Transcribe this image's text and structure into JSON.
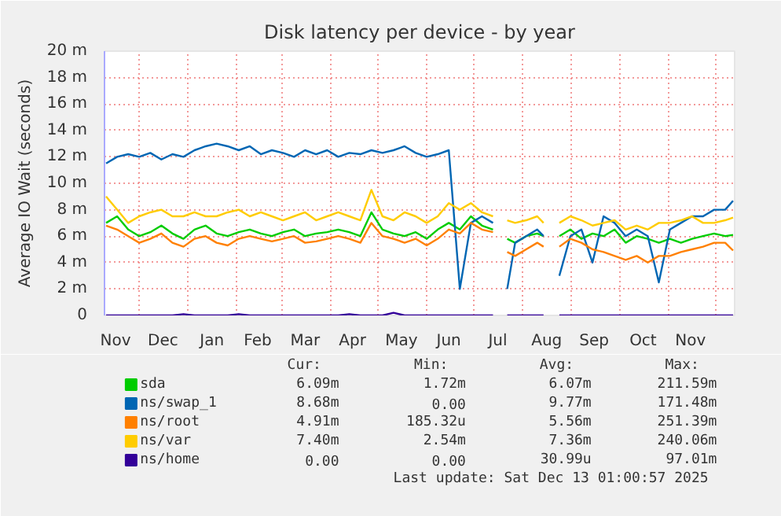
{
  "chart_data": {
    "type": "line",
    "title": "Disk latency per device - by year",
    "ylabel": "Average IO Wait (seconds)",
    "x": [
      "2024-11-10",
      "2024-11-17",
      "2024-11-24",
      "2024-12-01",
      "2024-12-08",
      "2024-12-15",
      "2024-12-22",
      "2024-12-29",
      "2025-01-05",
      "2025-01-12",
      "2025-01-19",
      "2025-01-26",
      "2025-02-02",
      "2025-02-09",
      "2025-02-16",
      "2025-02-23",
      "2025-03-02",
      "2025-03-09",
      "2025-03-16",
      "2025-03-23",
      "2025-03-30",
      "2025-04-06",
      "2025-04-13",
      "2025-04-20",
      "2025-04-27",
      "2025-05-04",
      "2025-05-11",
      "2025-05-18",
      "2025-05-25",
      "2025-06-01",
      "2025-06-08",
      "2025-06-15",
      "2025-06-22",
      "2025-06-29",
      "2025-07-06",
      "2025-07-13",
      "2025-07-20",
      "2025-07-22",
      "2025-07-27",
      "2025-08-03",
      "2025-08-10",
      "2025-08-14",
      "2025-08-17",
      "2025-08-24",
      "2025-08-31",
      "2025-09-07",
      "2025-09-14",
      "2025-09-21",
      "2025-09-28",
      "2025-10-05",
      "2025-10-12",
      "2025-10-19",
      "2025-10-26",
      "2025-11-02",
      "2025-11-09",
      "2025-11-16",
      "2025-11-23",
      "2025-11-30",
      "2025-12-07",
      "2025-12-12"
    ],
    "series": [
      {
        "name": "sda",
        "color": "#00cc00",
        "values": [
          7.0,
          7.5,
          6.5,
          6.0,
          6.3,
          6.8,
          6.2,
          5.8,
          6.5,
          6.8,
          6.2,
          6.0,
          6.3,
          6.5,
          6.2,
          6.0,
          6.3,
          6.5,
          6.0,
          6.2,
          6.3,
          6.5,
          6.3,
          6.0,
          7.8,
          6.5,
          6.2,
          6.0,
          6.3,
          5.8,
          6.5,
          7.0,
          6.5,
          7.5,
          6.8,
          6.5,
          null,
          5.8,
          5.5,
          6.0,
          6.2,
          6.0,
          null,
          6.0,
          6.5,
          5.8,
          6.2,
          6.0,
          6.5,
          5.5,
          6.0,
          5.8,
          5.5,
          5.8,
          5.5,
          5.8,
          6.0,
          6.2,
          6.0,
          6.09
        ]
      },
      {
        "name": "ns/swap_1",
        "color": "#0066b3",
        "values": [
          11.5,
          12.0,
          12.2,
          12.0,
          12.3,
          11.8,
          12.2,
          12.0,
          12.5,
          12.8,
          13.0,
          12.8,
          12.5,
          12.8,
          12.2,
          12.5,
          12.3,
          12.0,
          12.5,
          12.2,
          12.5,
          12.0,
          12.3,
          12.2,
          12.5,
          12.3,
          12.5,
          12.8,
          12.3,
          12.0,
          12.2,
          12.5,
          2.0,
          7.0,
          7.5,
          7.0,
          null,
          2.0,
          5.5,
          6.0,
          6.5,
          6.0,
          null,
          3.0,
          6.0,
          6.5,
          4.0,
          7.5,
          7.0,
          6.0,
          6.5,
          6.0,
          2.5,
          6.5,
          7.0,
          7.5,
          7.5,
          8.0,
          8.0,
          8.68
        ]
      },
      {
        "name": "ns/root",
        "color": "#ff8000",
        "values": [
          6.8,
          6.5,
          6.0,
          5.5,
          5.8,
          6.2,
          5.5,
          5.2,
          5.8,
          6.0,
          5.5,
          5.3,
          5.8,
          6.0,
          5.8,
          5.6,
          5.8,
          6.0,
          5.5,
          5.6,
          5.8,
          6.0,
          5.8,
          5.5,
          7.0,
          6.0,
          5.8,
          5.5,
          5.8,
          5.3,
          5.8,
          6.5,
          6.2,
          7.0,
          6.5,
          6.3,
          null,
          4.8,
          4.5,
          5.0,
          5.5,
          5.2,
          null,
          5.2,
          5.8,
          5.5,
          5.0,
          4.8,
          4.5,
          4.2,
          4.5,
          4.0,
          4.5,
          4.5,
          4.8,
          5.0,
          5.2,
          5.5,
          5.5,
          4.91
        ]
      },
      {
        "name": "ns/var",
        "color": "#ffcc00",
        "values": [
          9.0,
          8.0,
          7.0,
          7.5,
          7.8,
          8.0,
          7.5,
          7.5,
          7.8,
          7.5,
          7.5,
          7.8,
          8.0,
          7.5,
          7.8,
          7.5,
          7.2,
          7.5,
          7.8,
          7.2,
          7.5,
          7.8,
          7.5,
          7.2,
          9.5,
          7.5,
          7.2,
          7.8,
          7.5,
          7.0,
          7.5,
          8.5,
          8.0,
          8.5,
          7.8,
          7.5,
          null,
          7.2,
          7.0,
          7.2,
          7.5,
          7.0,
          null,
          7.0,
          7.5,
          7.2,
          6.8,
          7.0,
          7.2,
          6.5,
          6.8,
          6.5,
          7.0,
          7.0,
          7.2,
          7.5,
          7.0,
          7.0,
          7.2,
          7.4
        ]
      },
      {
        "name": "ns/home",
        "color": "#330099",
        "values": [
          0,
          0,
          0,
          0,
          0,
          0,
          0,
          0.1,
          0,
          0,
          0,
          0,
          0.1,
          0,
          0,
          0,
          0,
          0,
          0,
          0,
          0,
          0,
          0.1,
          0,
          0,
          0,
          0.2,
          0,
          0,
          0,
          0,
          0,
          0,
          0,
          0,
          0,
          null,
          0,
          0,
          0,
          0,
          0,
          null,
          0,
          0,
          0,
          0,
          0,
          0,
          0,
          0,
          0,
          0,
          0,
          0,
          0,
          0,
          0,
          0,
          0
        ]
      }
    ],
    "xlim": [
      "2024-11-09",
      "2025-12-13"
    ],
    "xticks": [
      {
        "value": "2024-11-16",
        "label": "Nov"
      },
      {
        "value": "2024-12-16",
        "label": "Dec"
      },
      {
        "value": "2025-01-16",
        "label": "Jan"
      },
      {
        "value": "2025-02-14",
        "label": "Feb"
      },
      {
        "value": "2025-03-16",
        "label": "Mar"
      },
      {
        "value": "2025-04-15",
        "label": "Apr"
      },
      {
        "value": "2025-05-16",
        "label": "May"
      },
      {
        "value": "2025-06-15",
        "label": "Jun"
      },
      {
        "value": "2025-07-16",
        "label": "Jul"
      },
      {
        "value": "2025-08-16",
        "label": "Aug"
      },
      {
        "value": "2025-09-15",
        "label": "Sep"
      },
      {
        "value": "2025-10-16",
        "label": "Oct"
      },
      {
        "value": "2025-11-15",
        "label": "Nov"
      },
      {
        "value": "2024-12-01",
        "label": null
      },
      {
        "value": "2025-01-01",
        "label": null
      },
      {
        "value": "2025-02-01",
        "label": null
      },
      {
        "value": "2025-03-01",
        "label": null
      },
      {
        "value": "2025-04-01",
        "label": null
      },
      {
        "value": "2025-05-01",
        "label": null
      },
      {
        "value": "2025-06-01",
        "label": null
      },
      {
        "value": "2025-07-01",
        "label": null
      },
      {
        "value": "2025-08-01",
        "label": null
      },
      {
        "value": "2025-09-01",
        "label": null
      },
      {
        "value": "2025-10-01",
        "label": null
      },
      {
        "value": "2025-11-01",
        "label": null
      },
      {
        "value": "2025-12-01",
        "label": null
      }
    ],
    "ylim": [
      0,
      20
    ],
    "yticks": [
      0,
      {
        "value": 2,
        "label": "2 m"
      },
      {
        "value": 4,
        "label": "4 m"
      },
      {
        "value": 6,
        "label": "6 m"
      },
      {
        "value": 8,
        "label": "8 m"
      },
      {
        "value": 10,
        "label": "10 m"
      },
      {
        "value": 12,
        "label": "12 m"
      },
      {
        "value": 14,
        "label": "14 m"
      },
      {
        "value": 16,
        "label": "16 m"
      },
      {
        "value": 18,
        "label": "18 m"
      },
      {
        "value": 20,
        "label": "20 m"
      }
    ],
    "grid": true,
    "legend": "bottom",
    "line_style": "solid",
    "annotations": [
      "Cur:",
      "Min:",
      "Avg:",
      "Max:",
      "6.09m",
      "1.72m",
      "6.07m",
      "211.59m",
      "8.68m",
      "0.00",
      "9.77m",
      "171.48m",
      "4.91m",
      "185.32u",
      "5.56m",
      "251.39m",
      "7.40m",
      "2.54m",
      "7.36m",
      "240.06m",
      "0.00",
      "0.00",
      "30.99u",
      "97.01m",
      "Last update:  Sat Dec 13 01:00:57 2025"
    ]
  }
}
